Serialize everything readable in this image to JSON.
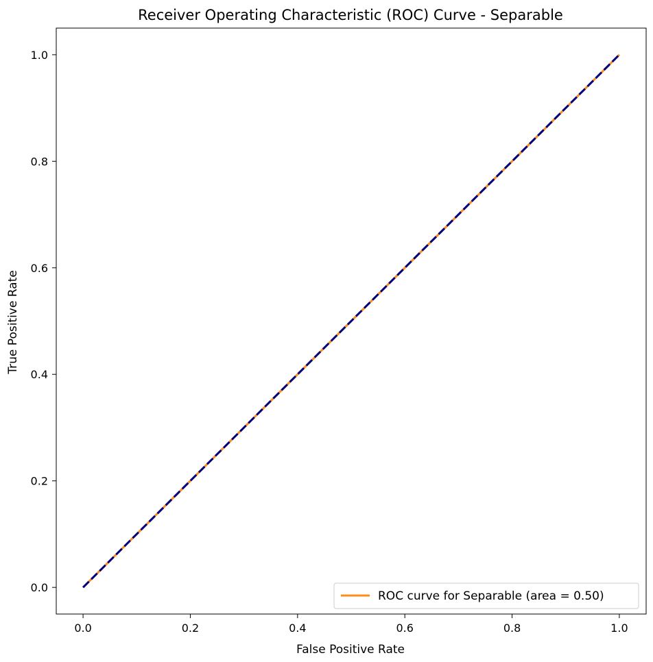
{
  "chart_data": {
    "type": "line",
    "title": "Receiver Operating Characteristic (ROC) Curve - Separable",
    "xlabel": "False Positive Rate",
    "ylabel": "True Positive Rate",
    "xlim": [
      -0.05,
      1.05
    ],
    "ylim": [
      -0.05,
      1.05
    ],
    "xticks": [
      0.0,
      0.2,
      0.4,
      0.6,
      0.8,
      1.0
    ],
    "yticks": [
      0.0,
      0.2,
      0.4,
      0.6,
      0.8,
      1.0
    ],
    "xtick_labels": [
      "0.0",
      "0.2",
      "0.4",
      "0.6",
      "0.8",
      "1.0"
    ],
    "ytick_labels": [
      "0.0",
      "0.2",
      "0.4",
      "0.6",
      "0.8",
      "1.0"
    ],
    "grid": false,
    "legend_position": "lower-right",
    "series": [
      {
        "name": "ROC curve for Separable (area = 0.50)",
        "style": "solid",
        "color": "#ff8c1a",
        "x": [
          0.0,
          1.0
        ],
        "y": [
          0.0,
          1.0
        ]
      },
      {
        "style": "dashed",
        "color": "#000080",
        "x": [
          0.0,
          1.0
        ],
        "y": [
          0.0,
          1.0
        ]
      }
    ]
  }
}
